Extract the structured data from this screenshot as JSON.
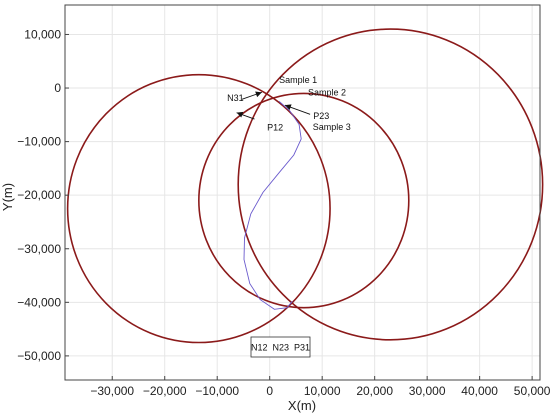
{
  "chart_data": {
    "type": "line",
    "xlabel": "X(m)",
    "ylabel": "Y(m)",
    "xlim": [
      -39000,
      51500
    ],
    "ylim": [
      -54500,
      15500
    ],
    "xticks": [
      -30000,
      -20000,
      -10000,
      0,
      10000,
      20000,
      30000,
      40000,
      50000
    ],
    "yticks": [
      10000,
      0,
      -10000,
      -20000,
      -30000,
      -40000,
      -50000
    ],
    "xtick_labels": [
      "−30,000",
      "−20,000",
      "−10,000",
      "0",
      "10,000",
      "20,000",
      "30,000",
      "40,000",
      "50,000"
    ],
    "ytick_labels": [
      "10,000",
      "0",
      "−10,000",
      "−20,000",
      "−30,000",
      "−40,000",
      "−50,000"
    ],
    "grid": true,
    "circle_color": "#8b1a1a",
    "path_color": "#6a5acd",
    "circles": [
      {
        "cx": -13500,
        "cy": -22500,
        "r": 25000
      },
      {
        "cx": 23000,
        "cy": -18000,
        "r": 29000
      },
      {
        "cx": 6500,
        "cy": -21000,
        "r": 20000
      }
    ],
    "path": [
      {
        "x": 1800,
        "y": -2500
      },
      {
        "x": 3800,
        "y": -4200
      },
      {
        "x": 5600,
        "y": -6800
      },
      {
        "x": 6000,
        "y": -9500
      },
      {
        "x": 4600,
        "y": -12500
      },
      {
        "x": 1800,
        "y": -15800
      },
      {
        "x": -1300,
        "y": -19500
      },
      {
        "x": -3600,
        "y": -23500
      },
      {
        "x": -4800,
        "y": -28000
      },
      {
        "x": -4900,
        "y": -32000
      },
      {
        "x": -3800,
        "y": -36500
      },
      {
        "x": -1800,
        "y": -39500
      },
      {
        "x": 900,
        "y": -41300
      },
      {
        "x": 3300,
        "y": -41000
      },
      {
        "x": 4300,
        "y": -39800
      }
    ],
    "annotations": [
      {
        "text": "Sample 1",
        "x": 1800,
        "y": 900
      },
      {
        "text": "Sample 2",
        "x": 7300,
        "y": -1400
      },
      {
        "text": "Sample 3",
        "x": 8200,
        "y": -7800
      },
      {
        "text": "N31",
        "x": -8100,
        "y": -2400
      },
      {
        "text": "P23",
        "x": 8300,
        "y": -5800
      },
      {
        "text": "P12",
        "x": -500,
        "y": -7900
      }
    ],
    "arrows": [
      {
        "from": [
          -5300,
          -2100
        ],
        "to": [
          -1500,
          -800
        ]
      },
      {
        "from": [
          -2900,
          -5800
        ],
        "to": [
          -6300,
          -4600
        ]
      },
      {
        "from": [
          7700,
          -4900
        ],
        "to": [
          2900,
          -3200
        ]
      }
    ],
    "legend": {
      "text": "N12  N23  P31",
      "position": "bottom-center"
    }
  }
}
